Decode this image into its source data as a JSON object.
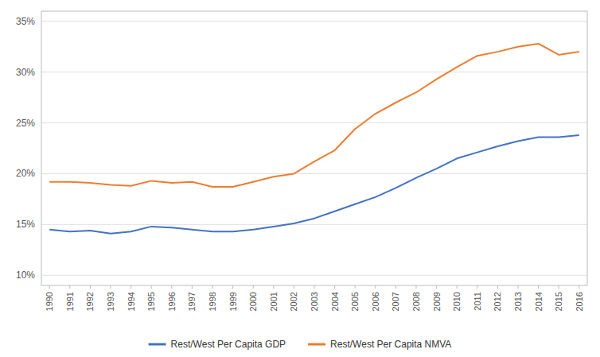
{
  "chart_data": {
    "type": "line",
    "x": [
      1990,
      1991,
      1992,
      1993,
      1994,
      1995,
      1996,
      1997,
      1998,
      1999,
      2000,
      2001,
      2002,
      2003,
      2004,
      2005,
      2006,
      2007,
      2008,
      2009,
      2010,
      2011,
      2012,
      2013,
      2014,
      2015,
      2016
    ],
    "series": [
      {
        "name": "Rest/West Per Capita GDP",
        "color": "#4472C4",
        "values": [
          0.145,
          0.143,
          0.144,
          0.141,
          0.143,
          0.148,
          0.147,
          0.145,
          0.143,
          0.143,
          0.145,
          0.148,
          0.151,
          0.156,
          0.163,
          0.17,
          0.177,
          0.186,
          0.196,
          0.205,
          0.215,
          0.221,
          0.227,
          0.232,
          0.236,
          0.236,
          0.238
        ]
      },
      {
        "name": "Rest/West Per Capita NMVA",
        "color": "#ED7D31",
        "values": [
          0.192,
          0.192,
          0.191,
          0.189,
          0.188,
          0.193,
          0.191,
          0.192,
          0.187,
          0.187,
          0.192,
          0.197,
          0.2,
          0.212,
          0.223,
          0.244,
          0.259,
          0.27,
          0.28,
          0.293,
          0.305,
          0.316,
          0.32,
          0.325,
          0.328,
          0.317,
          0.32
        ]
      }
    ],
    "xlim": [
      1989.6,
      2016.4
    ],
    "xticks": [
      1990,
      1991,
      1992,
      1993,
      1994,
      1995,
      1996,
      1997,
      1998,
      1999,
      2000,
      2001,
      2002,
      2003,
      2004,
      2005,
      2006,
      2007,
      2008,
      2009,
      2010,
      2011,
      2012,
      2013,
      2014,
      2015,
      2016
    ],
    "ylim": [
      0.09,
      0.36
    ],
    "yticks": [
      {
        "value": 0.1,
        "label": "10%"
      },
      {
        "value": 0.15,
        "label": "15%"
      },
      {
        "value": 0.2,
        "label": "20%"
      },
      {
        "value": 0.25,
        "label": "25%"
      },
      {
        "value": 0.3,
        "label": "30%"
      },
      {
        "value": 0.35,
        "label": "35%"
      }
    ],
    "grid": true,
    "legend": "bottom"
  }
}
